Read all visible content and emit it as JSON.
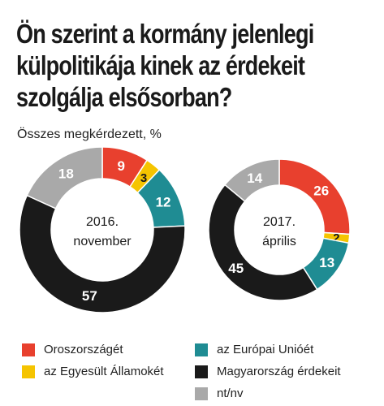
{
  "title": {
    "lines": [
      "Ön szerint a kormány jelenlegi",
      "külpolitikája kinek az érdekeit",
      "szolgálja elsősorban?"
    ]
  },
  "subtitle": "Összes megkérdezett, %",
  "legend": [
    {
      "label": "Oroszországét",
      "color": "#e8402e"
    },
    {
      "label": "az Európai Unióét",
      "color": "#1f8c93"
    },
    {
      "label": "az Egyesült Államokét",
      "color": "#f5c400"
    },
    {
      "label": "Magyarország érdekeit",
      "color": "#1a1a1a"
    },
    {
      "label": "nt/nv",
      "color": "#a9a9a9"
    }
  ],
  "chart_data": [
    {
      "type": "pie",
      "center_label": [
        "2016.",
        "november"
      ],
      "categories": [
        "Oroszországét",
        "az Egyesült Államokét",
        "az Európai Unióét",
        "Magyarország érdekeit",
        "nt/nv"
      ],
      "values": [
        9,
        3,
        12,
        57,
        18
      ],
      "colors": [
        "#e8402e",
        "#f5c400",
        "#1f8c93",
        "#1a1a1a",
        "#a9a9a9"
      ]
    },
    {
      "type": "pie",
      "center_label": [
        "2017.",
        "április"
      ],
      "categories": [
        "Oroszországét",
        "az Egyesült Államokét",
        "az Európai Unióét",
        "Magyarország érdekeit",
        "nt/nv"
      ],
      "values": [
        26,
        2,
        13,
        45,
        14
      ],
      "colors": [
        "#e8402e",
        "#f5c400",
        "#1f8c93",
        "#1a1a1a",
        "#a9a9a9"
      ]
    }
  ]
}
